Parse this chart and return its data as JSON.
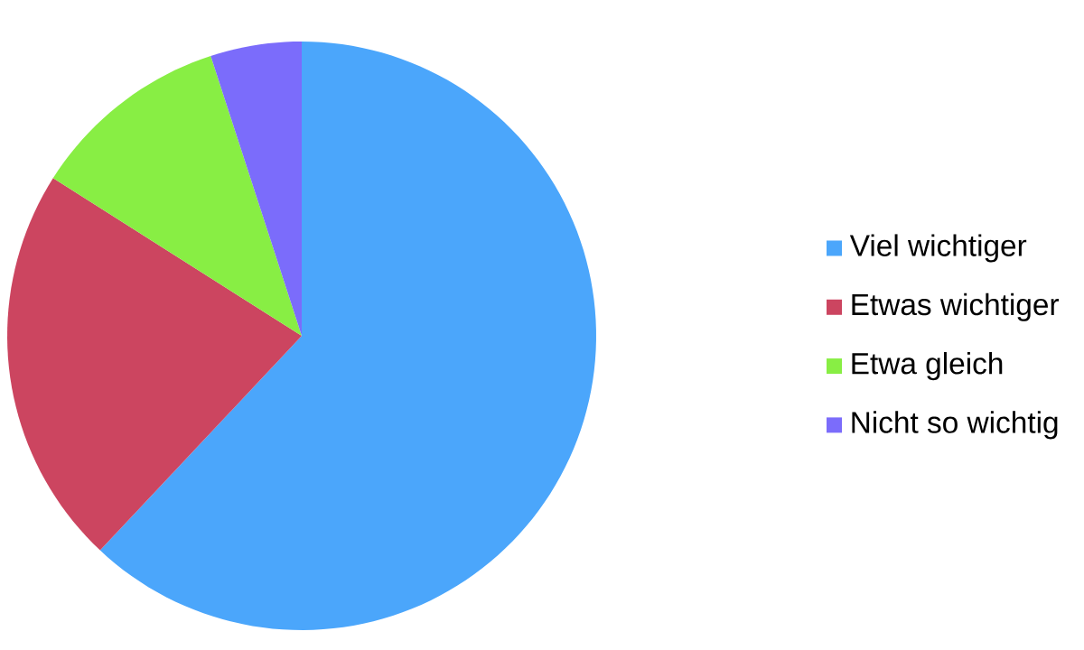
{
  "chart_data": {
    "type": "pie",
    "categories": [
      "Viel wichtiger",
      "Etwas wichtiger",
      "Etwa gleich",
      "Nicht so wichtig"
    ],
    "values": [
      62,
      22,
      11,
      5
    ],
    "colors": [
      "#4ba6fb",
      "#cc4560",
      "#88ee44",
      "#7b6cfb"
    ],
    "legend": "right"
  }
}
